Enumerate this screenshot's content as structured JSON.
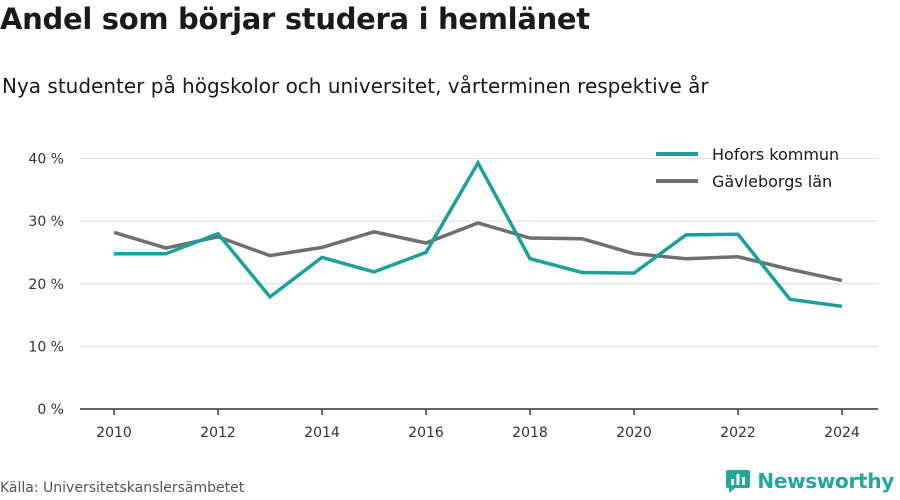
{
  "header": {
    "title": "Andel som börjar studera i hemlänet",
    "subtitle": "Nya studenter på högskolor och universitet, vårterminen respektive år"
  },
  "footer": {
    "source": "Källa: Universitetskanslersämbetet",
    "brand": "Newsworthy",
    "brand_icon": "newsworthy-logo-icon"
  },
  "chart_data": {
    "type": "line",
    "title": "Andel som börjar studera i hemlänet",
    "subtitle": "Nya studenter på högskolor och universitet, vårterminen respektive år",
    "x": [
      2010,
      2011,
      2012,
      2013,
      2014,
      2015,
      2016,
      2017,
      2018,
      2019,
      2020,
      2021,
      2022,
      2023,
      2024
    ],
    "x_ticks": [
      2010,
      2012,
      2014,
      2016,
      2018,
      2020,
      2022,
      2024
    ],
    "x_tick_labels": [
      "2010",
      "2012",
      "2014",
      "2016",
      "2018",
      "2020",
      "2022",
      "2024"
    ],
    "y_ticks": [
      0,
      10,
      20,
      30,
      40
    ],
    "y_tick_labels": [
      "0 %",
      "10 %",
      "20 %",
      "30 %",
      "40 %"
    ],
    "ylim": [
      0,
      40
    ],
    "grid": "horizontal",
    "legend_position": "top-right",
    "series": [
      {
        "name": "Hofors kommun",
        "color": "#1aa29a",
        "values": [
          24.8,
          24.8,
          28.0,
          17.9,
          24.2,
          21.9,
          25.0,
          39.3,
          24.0,
          21.8,
          21.7,
          27.8,
          27.9,
          17.5,
          16.4
        ]
      },
      {
        "name": "Gävleborgs län",
        "color": "#6e6e73",
        "values": [
          28.2,
          25.7,
          27.5,
          24.5,
          25.8,
          28.3,
          26.5,
          29.7,
          27.3,
          27.2,
          24.8,
          24.0,
          24.3,
          22.3,
          20.5
        ]
      }
    ]
  }
}
